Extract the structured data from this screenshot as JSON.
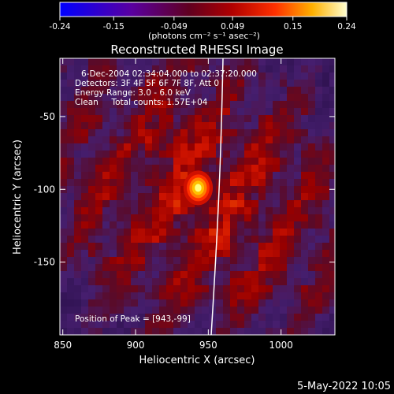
{
  "chart_data": {
    "type": "heatmap",
    "title": "Reconstructed RHESSI Image",
    "xlabel": "Heliocentric X (arcsec)",
    "ylabel": "Heliocentric Y (arcsec)",
    "xlim": [
      848,
      1037
    ],
    "ylim": [
      -200,
      -10
    ],
    "x_ticks": [
      850,
      900,
      950,
      1000
    ],
    "y_ticks": [
      -50,
      -100,
      -150
    ],
    "colorbar": {
      "range": [
        -0.24,
        0.24
      ],
      "ticks": [
        "-0.24",
        "-0.15",
        "-0.049",
        "0.049",
        "0.15",
        "0.24"
      ],
      "unit_label": "(photons cm⁻² s⁻¹ asec⁻²)"
    },
    "annotations": [
      "6-Dec-2004 02:34:04.000 to 02:37:20.000",
      "Detectors: 3F 4F 5F 6F 7F 8F, Att 0",
      "Energy Range: 3.0 - 6.0 keV",
      "Clean     Total counts: 1.57E+04"
    ],
    "peak_label": "Position of Peak = [943,-99]",
    "peak": {
      "x": 943,
      "y": -99,
      "value": 0.24
    },
    "footer_date": "5-May-2022 10:05"
  }
}
